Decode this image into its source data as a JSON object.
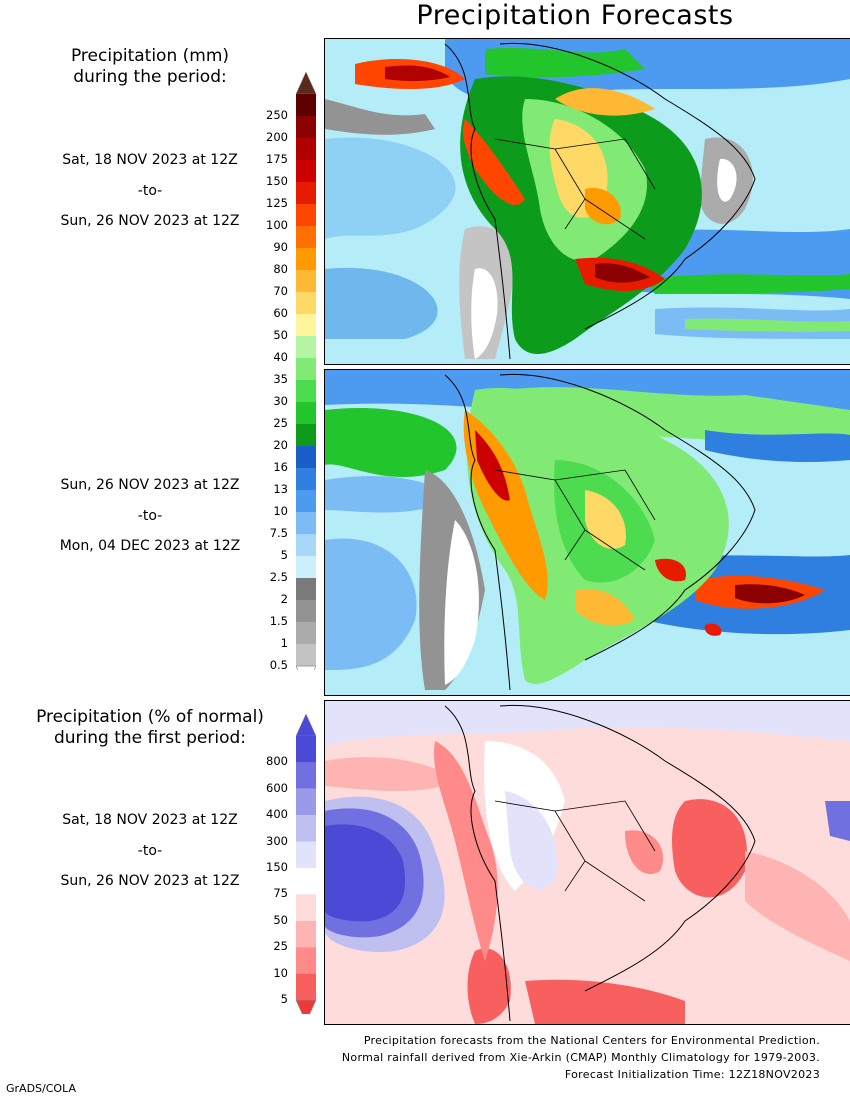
{
  "title": "Precipitation Forecasts",
  "legend_mm": {
    "heading_line1": "Precipitation (mm)",
    "heading_line2": "during the period:",
    "labels": [
      "250",
      "200",
      "175",
      "150",
      "125",
      "100",
      "90",
      "80",
      "70",
      "60",
      "50",
      "40",
      "35",
      "30",
      "25",
      "20",
      "16",
      "13",
      "10",
      "7.5",
      "5",
      "2.5",
      "2",
      "1.5",
      "1",
      "0.5"
    ],
    "colors": [
      "#5c0000",
      "#8b0000",
      "#b00000",
      "#cc0000",
      "#e61b00",
      "#ff4500",
      "#ff7000",
      "#ff9a00",
      "#ffb833",
      "#ffd966",
      "#fff59d",
      "#b3f5a3",
      "#80ea74",
      "#4ddc50",
      "#22c52b",
      "#0d9b1c",
      "#1a5fc8",
      "#2f7fe0",
      "#4d9bf0",
      "#7bbcf5",
      "#a7d8f7",
      "#ccf0fb",
      "#7a7a7a",
      "#939393",
      "#ababab",
      "#c4c4c4"
    ],
    "top_arrow_color": "#5a2a1a",
    "bottom_arrow_color": "#ffffff"
  },
  "period1": {
    "start": "Sat, 18 NOV 2023 at 12Z",
    "to": "-to-",
    "end": "Sun, 26 NOV 2023 at 12Z"
  },
  "period2": {
    "start": "Sun, 26 NOV 2023 at 12Z",
    "to": "-to-",
    "end": "Mon, 04 DEC 2023 at 12Z"
  },
  "legend_pct": {
    "heading_line1": "Precipitation (% of normal)",
    "heading_line2": "during the first period:",
    "labels": [
      "800",
      "600",
      "400",
      "300",
      "150",
      "75",
      "50",
      "25",
      "10",
      "5"
    ],
    "colors": [
      "#4a4ad6",
      "#7070e0",
      "#9a9ae8",
      "#c0c0f0",
      "#e2e2fa",
      "#ffffff",
      "#ffdcdc",
      "#ffb4b4",
      "#ff8a8a",
      "#f86060"
    ],
    "top_arrow_color": "#4a4ad6",
    "bottom_arrow_color": "#f03838"
  },
  "period3": {
    "start": "Sat, 18 NOV 2023 at 12Z",
    "to": "-to-",
    "end": "Sun, 26 NOV 2023 at 12Z"
  },
  "credits": {
    "line1": "Precipitation forecasts from the National Centers for Environmental Prediction.",
    "line2": "Normal rainfall derived from Xie-Arkin (CMAP) Monthly Climatology for 1979-2003.",
    "line3": "Forecast Initialization Time: 12Z18NOV2023"
  },
  "footer": "GrADS/COLA"
}
